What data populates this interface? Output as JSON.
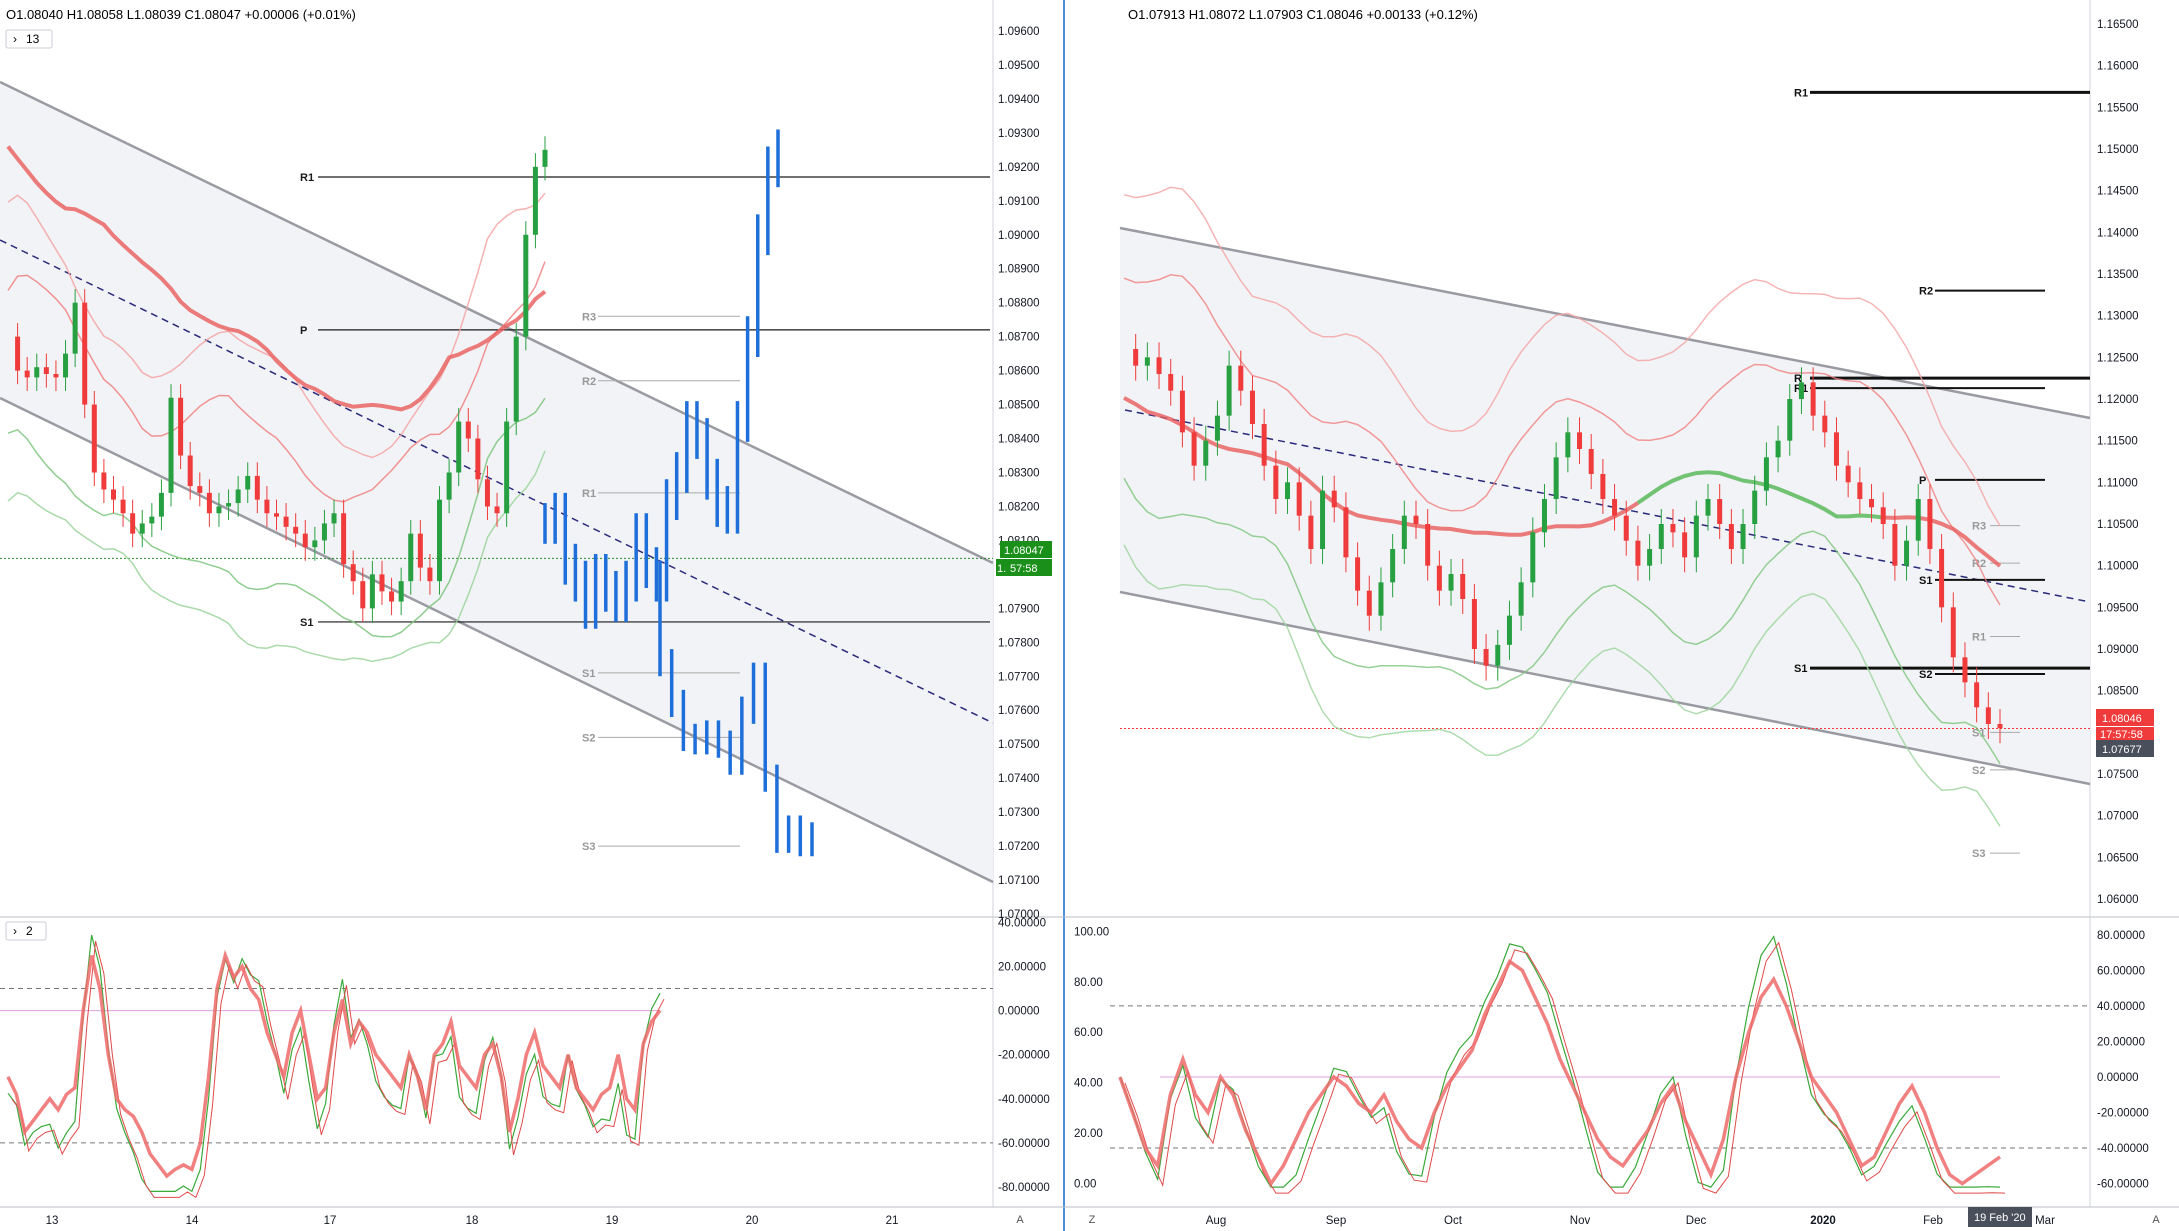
{
  "colors": {
    "up": "#26a041",
    "down": "#ef3b3b",
    "blue": "#1e6fd9",
    "channel": "#9a9aa2",
    "band": "#f08080",
    "lowband": "#7cc47c",
    "ma": "#e85d5d",
    "trend": "#2a2a7a",
    "divider": "#4a90d9",
    "price_badge_green": "#1a8f1a",
    "price_badge_red": "#ef3b3b",
    "badge_dark": "#4a4f5c"
  },
  "left_panel": {
    "ohlc": "O1.08040  H1.08058  L1.08039  C1.08047  +0.00006 (+0.01%)",
    "interval_button": "13",
    "price_badge": "1.08047",
    "countdown": "57:58",
    "price_badge_behind": "1.",
    "osc_button": "2",
    "corner_label": "A",
    "pivot_labels": [
      "R1",
      "P",
      "S1",
      "R3",
      "R2",
      "R1",
      "S1",
      "S2",
      "S3"
    ]
  },
  "right_panel": {
    "ohlc": "O1.07913  H1.08072  L1.07903  C1.08046  +0.00133 (+0.12%)",
    "price_badge": "1.08046",
    "countdown": "17:57:58",
    "low_badge": "1.07677",
    "date_badge": "19 Feb '20",
    "left_corner": "Z",
    "corner_label": "A",
    "pivot_labels": [
      "R1",
      "R2",
      "R",
      "R1",
      "P",
      "S1",
      "S1",
      "S2",
      "R3",
      "R2",
      "R1",
      "S1",
      "S2",
      "S3"
    ]
  },
  "chart_data": [
    {
      "type": "line",
      "title": "",
      "instrument_ohlc": "O1.08040 H1.08058 L1.08039 C1.08047 +0.00006 (+0.01%)",
      "x_ticks": [
        "13",
        "14",
        "17",
        "18",
        "19",
        "20",
        "21"
      ],
      "y_ticks": [
        "1.09600",
        "1.09500",
        "1.09400",
        "1.09300",
        "1.09200",
        "1.09100",
        "1.09000",
        "1.08900",
        "1.08800",
        "1.08700",
        "1.08600",
        "1.08500",
        "1.08400",
        "1.08300",
        "1.08200",
        "1.08100",
        "1.07900",
        "1.07800",
        "1.07700",
        "1.07600",
        "1.07500",
        "1.07400",
        "1.07300",
        "1.07200",
        "1.07100",
        "1.07000"
      ],
      "ylim": [
        1.07,
        1.0965
      ],
      "last_price": 1.08047,
      "pivots": [
        {
          "label": "R1",
          "value": 1.0917
        },
        {
          "label": "P",
          "value": 1.0872
        },
        {
          "label": "S1",
          "value": 1.0786
        },
        {
          "label": "R3",
          "value": 1.0876
        },
        {
          "label": "R2",
          "value": 1.0857
        },
        {
          "label": "R1",
          "value": 1.0824
        },
        {
          "label": "S1",
          "value": 1.0771
        },
        {
          "label": "S2",
          "value": 1.0752
        },
        {
          "label": "S3",
          "value": 1.072
        }
      ],
      "series": [
        {
          "values": [
            1.087,
            1.086,
            1.0858,
            1.0861,
            1.0859,
            1.0858,
            1.0865,
            1.088,
            1.085,
            1.083,
            1.0825,
            1.0822,
            1.0818,
            1.0812,
            1.0815,
            1.0817,
            1.0824,
            1.0852,
            1.0835,
            1.0826,
            1.0824,
            1.0818,
            1.082,
            1.0821,
            1.0825,
            1.0829,
            1.0822,
            1.0818,
            1.0817,
            1.0814,
            1.0812,
            1.0808,
            1.081,
            1.0815,
            1.0818,
            1.0803,
            1.0798,
            1.079,
            1.08,
            1.0795,
            1.0792,
            1.0798,
            1.0812,
            1.0802,
            1.0798,
            1.0822,
            1.083,
            1.0845,
            1.084,
            1.0828,
            1.082,
            1.0818,
            1.0845,
            1.087,
            1.09,
            1.092,
            1.0925
          ]
        },
        {
          "values": [
            1.0774,
            1.0762,
            1.0752,
            1.0751,
            1.0753,
            1.075,
            1.0745,
            1.076,
            1.077,
            1.074,
            1.0722,
            1.0725,
            1.0721,
            1.0723
          ]
        }
      ],
      "oscillator": {
        "ylim": [
          -85,
          42
        ],
        "y_ticks": [
          "40.00000",
          "20.00000",
          "0.00000",
          "-20.00000",
          "-40.00000",
          "-60.00000",
          "-80.00000"
        ],
        "levels": [
          10,
          -60
        ],
        "mid": 0,
        "values": [
          -30,
          -38,
          -55,
          -50,
          -45,
          -40,
          -45,
          -38,
          -35,
          0,
          25,
          10,
          -20,
          -40,
          -45,
          -48,
          -55,
          -65,
          -70,
          -75,
          -72,
          -70,
          -72,
          -60,
          -30,
          10,
          25,
          15,
          20,
          10,
          5,
          -10,
          -20,
          -30,
          -10,
          0,
          -20,
          -40,
          -35,
          -10,
          5,
          -15,
          -5,
          -10,
          -20,
          -25,
          -30,
          -35,
          -20,
          -30,
          -45,
          -20,
          -15,
          -5,
          -25,
          -30,
          -35,
          -20,
          -15,
          -30,
          -55,
          -40,
          -20,
          -10,
          -25,
          -30,
          -35,
          -20,
          -35,
          -40,
          -45,
          -38,
          -35,
          -20,
          -40,
          -45,
          -15,
          -5,
          0
        ]
      }
    },
    {
      "type": "line",
      "title": "",
      "instrument_ohlc": "O1.07913 H1.08072 L1.07903 C1.08046 +0.00133 (+0.12%)",
      "x_ticks": [
        "Aug",
        "Sep",
        "Oct",
        "Nov",
        "Dec",
        "2020",
        "Feb",
        "Mar"
      ],
      "y_ticks": [
        "1.16500",
        "1.16000",
        "1.15500",
        "1.15000",
        "1.14500",
        "1.14000",
        "1.13500",
        "1.13000",
        "1.12500",
        "1.12000",
        "1.11500",
        "1.11000",
        "1.10500",
        "1.10000",
        "1.09500",
        "1.09000",
        "1.08500",
        "1.07500",
        "1.07000",
        "1.06500",
        "1.06000"
      ],
      "ylim": [
        1.0565,
        1.168
      ],
      "last_price": 1.08046,
      "session_low": 1.07677,
      "pivots": [
        {
          "label": "R1",
          "value": 1.1568
        },
        {
          "label": "R2",
          "value": 1.133
        },
        {
          "label": "R",
          "value": 1.1225
        },
        {
          "label": "R1",
          "value": 1.1213
        },
        {
          "label": "P",
          "value": 1.1103
        },
        {
          "label": "S1",
          "value": 1.0983
        },
        {
          "label": "S1",
          "value": 1.0877
        },
        {
          "label": "S2",
          "value": 1.087
        },
        {
          "label": "R3",
          "value": 1.1048
        },
        {
          "label": "R2",
          "value": 1.1003
        },
        {
          "label": "R1",
          "value": 1.0915
        },
        {
          "label": "S1",
          "value": 1.08
        },
        {
          "label": "S2",
          "value": 1.0755
        },
        {
          "label": "S3",
          "value": 1.0655
        }
      ],
      "series": [
        {
          "values": [
            1.126,
            1.124,
            1.125,
            1.123,
            1.121,
            1.116,
            1.112,
            1.115,
            1.118,
            1.124,
            1.121,
            1.117,
            1.112,
            1.108,
            1.11,
            1.106,
            1.102,
            1.109,
            1.107,
            1.101,
            1.097,
            1.094,
            1.098,
            1.102,
            1.106,
            1.105,
            1.1,
            1.097,
            1.099,
            1.096,
            1.09,
            1.088,
            1.0905,
            1.094,
            1.098,
            1.104,
            1.108,
            1.113,
            1.116,
            1.114,
            1.111,
            1.108,
            1.106,
            1.103,
            1.1,
            1.102,
            1.105,
            1.104,
            1.101,
            1.106,
            1.108,
            1.105,
            1.102,
            1.105,
            1.109,
            1.113,
            1.115,
            1.12,
            1.122,
            1.118,
            1.116,
            1.112,
            1.11,
            1.108,
            1.107,
            1.105,
            1.1,
            1.103,
            1.108,
            1.102,
            1.095,
            1.089,
            1.086,
            1.083,
            1.081,
            1.0805
          ]
        }
      ],
      "oscillator": {
        "ylim": [
          -67,
          85
        ],
        "y_ticks": [
          "80.00000",
          "60.00000",
          "40.00000",
          "20.00000",
          "0.00000",
          "-20.00000",
          "-40.00000",
          "-60.00000"
        ],
        "left_ticks": [
          "100.00",
          "80.00",
          "60.00",
          "40.00",
          "20.00",
          "0.00"
        ],
        "levels": [
          40,
          -40
        ],
        "mid": 0,
        "values": [
          0,
          -20,
          -40,
          -50,
          -10,
          10,
          -10,
          -20,
          0,
          -10,
          -30,
          -45,
          -60,
          -50,
          -35,
          -20,
          -10,
          0,
          -5,
          -15,
          -20,
          -10,
          -25,
          -35,
          -40,
          -20,
          -5,
          5,
          15,
          35,
          50,
          65,
          60,
          45,
          30,
          10,
          -5,
          -20,
          -35,
          -45,
          -50,
          -40,
          -30,
          -15,
          -5,
          -25,
          -40,
          -55,
          -35,
          0,
          25,
          45,
          55,
          40,
          20,
          0,
          -10,
          -20,
          -35,
          -50,
          -45,
          -30,
          -15,
          -5,
          -20,
          -40,
          -55,
          -60,
          -55,
          -50,
          -45
        ]
      }
    }
  ]
}
